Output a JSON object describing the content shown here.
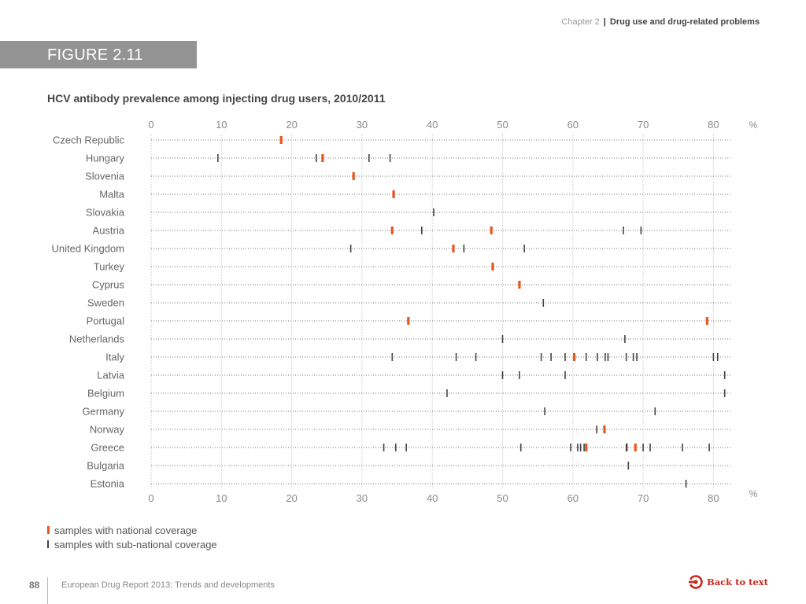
{
  "header": {
    "chapter": "Chapter 2",
    "separator": "|",
    "section": "Drug use and drug-related problems"
  },
  "figure": {
    "label": "FIGURE 2.11"
  },
  "colors": {
    "national": "#e8561f",
    "subnational": "#444444",
    "accent": "#c8281e",
    "banner": "#939393"
  },
  "legend": {
    "national": "samples with national coverage",
    "subnational": "samples with sub-national coverage"
  },
  "footer": {
    "page": "88",
    "title": "European Drug Report 2013: Trends and developments",
    "back_link": "Back to text",
    "back_icon": "back-arrow-circle-icon"
  },
  "chart_data": {
    "type": "scatter",
    "title": "HCV antibody prevalence among injecting drug users, 2010/2011",
    "xlabel": "%",
    "ylabel": "",
    "xlim": [
      0,
      82
    ],
    "xticks": [
      0,
      10,
      20,
      30,
      40,
      50,
      60,
      70,
      80
    ],
    "xtick_labels": [
      "0",
      "10",
      "20",
      "30",
      "40",
      "50",
      "60",
      "70",
      "80"
    ],
    "unit_label": "%",
    "grid": true,
    "legend_position": "bottom-left",
    "categories": [
      "Czech Republic",
      "Hungary",
      "Slovenia",
      "Malta",
      "Slovakia",
      "Austria",
      "United Kingdom",
      "Turkey",
      "Cyprus",
      "Sweden",
      "Portugal",
      "Netherlands",
      "Italy",
      "Latvia",
      "Belgium",
      "Germany",
      "Norway",
      "Greece",
      "Bulgaria",
      "Estonia"
    ],
    "series": [
      {
        "name": "samples with national coverage",
        "values": [
          [
            18.5
          ],
          [
            24.4
          ],
          [
            28.8
          ],
          [
            34.5
          ],
          [],
          [
            34.3,
            48.4
          ],
          [
            43.0
          ],
          [
            48.6
          ],
          [
            52.4
          ],
          [],
          [
            36.6,
            79.1
          ],
          [],
          [
            60.2
          ],
          [],
          [],
          [],
          [
            64.5
          ],
          [
            61.9,
            68.9
          ],
          [],
          []
        ]
      },
      {
        "name": "samples with sub-national coverage",
        "values": [
          [],
          [
            9.5,
            23.5,
            31.0,
            34.0
          ],
          [],
          [],
          [
            40.2
          ],
          [
            38.5,
            67.2,
            69.7
          ],
          [
            28.4,
            44.5,
            53.1
          ],
          [],
          [],
          [
            55.8
          ],
          [],
          [
            50.0,
            67.4
          ],
          [
            34.3,
            43.4,
            46.2,
            55.5,
            56.9,
            58.9,
            61.9,
            63.5,
            64.6,
            65.0,
            67.6,
            68.6,
            69.1,
            80.0,
            80.6
          ],
          [
            50.0,
            52.4,
            58.9,
            81.6
          ],
          [
            42.1,
            81.6
          ],
          [
            56.0,
            71.7
          ],
          [
            63.4
          ],
          [
            33.1,
            34.8,
            36.3,
            52.6,
            59.7,
            60.7,
            61.1,
            61.6,
            67.6,
            67.7,
            70.0,
            71.0,
            75.6,
            79.4
          ],
          [
            67.9
          ],
          [
            76.1
          ]
        ]
      }
    ]
  }
}
